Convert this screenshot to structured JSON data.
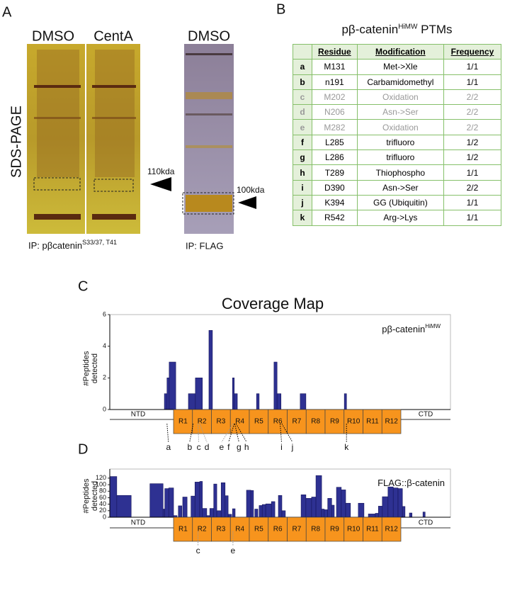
{
  "panel_labels": [
    "A",
    "B",
    "C",
    "D"
  ],
  "gel": {
    "side_label": "SDS-PAGE",
    "lanes": [
      "DMSO",
      "CentA",
      "DMSO"
    ],
    "markers": [
      "110kda",
      "100kda"
    ],
    "ip_left": {
      "main": "IP: pβcatenin",
      "sup": "S33/37, T41"
    },
    "ip_right": "IP: FLAG"
  },
  "table": {
    "title": {
      "main": "pβ-catenin",
      "sup": "HiMW",
      "tail": " PTMs"
    },
    "header": [
      "Residue",
      "Modification",
      "Frequency"
    ],
    "rows": [
      [
        "a",
        "M131",
        "Met->Xle",
        "1/1"
      ],
      [
        "b",
        "n191",
        "Carbamidomethyl",
        "1/1"
      ],
      [
        "c",
        "M202",
        "Oxidation",
        "2/2"
      ],
      [
        "d",
        "N206",
        "Asn->Ser",
        "2/2"
      ],
      [
        "e",
        "M282",
        "Oxidation",
        "2/2"
      ],
      [
        "f",
        "L285",
        "trifluoro",
        "1/2"
      ],
      [
        "g",
        "L286",
        "trifluoro",
        "1/2"
      ],
      [
        "h",
        "T289",
        "Thiophospho",
        "1/1"
      ],
      [
        "i",
        "D390",
        "Asn->Ser",
        "2/2"
      ],
      [
        "j",
        "K394",
        "GG (Ubiquitin)",
        "1/1"
      ],
      [
        "k",
        "R542",
        "Arg->Lys",
        "1/1"
      ]
    ],
    "row_colors": [
      "#000",
      "#000",
      "#999",
      "#999",
      "#999",
      "#000",
      "#000",
      "#000",
      "#000",
      "#000",
      "#000"
    ]
  },
  "chart_data": [
    {
      "type": "bar",
      "title": "Coverage Map",
      "legend": {
        "main": "pβ-catenin",
        "sup": "HiMW"
      },
      "ylabel": [
        "#Peptides",
        "detected"
      ],
      "color": "#2e3192",
      "x": [
        125,
        131,
        136,
        180,
        196,
        227,
        281,
        285,
        336,
        376,
        383,
        436,
        537
      ],
      "x_end": [
        131,
        136,
        151,
        196,
        212,
        235,
        285,
        292,
        342,
        383,
        392,
        449,
        542
      ],
      "values": [
        1,
        2,
        3,
        1,
        2,
        5,
        2,
        1,
        1,
        3,
        1,
        1,
        1
      ],
      "xlim": [
        0,
        780
      ],
      "ylim": [
        0,
        6
      ],
      "yticks": [
        0,
        2,
        4,
        6
      ],
      "domains": [
        "NTD",
        "R1",
        "R2",
        "R3",
        "R4",
        "R5",
        "R6",
        "R7",
        "R8",
        "R9",
        "R10",
        "R11",
        "R12",
        "CTD"
      ],
      "annotations": [
        {
          "label": "a",
          "x": 131,
          "color": "#000"
        },
        {
          "label": "b",
          "x": 191,
          "color": "#000"
        },
        {
          "label": "c",
          "x": 202,
          "color": "#999"
        },
        {
          "label": "d",
          "x": 206,
          "color": "#999"
        },
        {
          "label": "e",
          "x": 282,
          "color": "#999"
        },
        {
          "label": "f",
          "x": 285,
          "color": "#000"
        },
        {
          "label": "g",
          "x": 286,
          "color": "#000"
        },
        {
          "label": "h",
          "x": 289,
          "color": "#000"
        },
        {
          "label": "i",
          "x": 390,
          "color": "#000"
        },
        {
          "label": "j",
          "x": 394,
          "color": "#000"
        },
        {
          "label": "k",
          "x": 542,
          "color": "#000"
        }
      ]
    },
    {
      "type": "bar",
      "legend": {
        "main": "FLAG::β-catenin"
      },
      "ylabel": [
        "#Peptides",
        "detected"
      ],
      "color": "#2e3192",
      "x": [
        0,
        16,
        92,
        122,
        126,
        135,
        146,
        157,
        167,
        186,
        195,
        206,
        212,
        222,
        229,
        238,
        245,
        255,
        264,
        271,
        281,
        313,
        323,
        332,
        342,
        349,
        357,
        370,
        386,
        394,
        438,
        449,
        462,
        472,
        485,
        491,
        499,
        508,
        519,
        530,
        540,
        569,
        592,
        608,
        615,
        624,
        637,
        649,
        660,
        670,
        686,
        717
      ],
      "x_end": [
        16,
        49,
        122,
        126,
        135,
        146,
        154,
        165,
        177,
        195,
        206,
        212,
        222,
        229,
        238,
        245,
        255,
        264,
        271,
        279,
        287,
        323,
        329,
        339,
        349,
        357,
        370,
        378,
        394,
        402,
        449,
        462,
        472,
        485,
        491,
        499,
        508,
        514,
        530,
        540,
        551,
        582,
        608,
        615,
        624,
        637,
        649,
        660,
        670,
        676,
        692,
        722
      ],
      "values": [
        125,
        67,
        103,
        25,
        88,
        90,
        5,
        35,
        62,
        65,
        108,
        110,
        27,
        5,
        27,
        102,
        20,
        106,
        66,
        9,
        26,
        83,
        82,
        25,
        36,
        39,
        41,
        48,
        67,
        20,
        69,
        58,
        62,
        128,
        25,
        23,
        58,
        37,
        92,
        84,
        43,
        43,
        10,
        12,
        34,
        63,
        93,
        90,
        88,
        33,
        13,
        16
      ],
      "xlim": [
        0,
        780
      ],
      "ylim": [
        0,
        148
      ],
      "yticks": [
        0,
        20,
        40,
        60,
        80,
        100,
        120
      ],
      "domains": [
        "NTD",
        "R1",
        "R2",
        "R3",
        "R4",
        "R5",
        "R6",
        "R7",
        "R8",
        "R9",
        "R10",
        "R11",
        "R12",
        "CTD"
      ],
      "annotations": [
        {
          "label": "c",
          "x": 202,
          "color": "#999"
        },
        {
          "label": "e",
          "x": 282,
          "color": "#999"
        }
      ]
    }
  ]
}
